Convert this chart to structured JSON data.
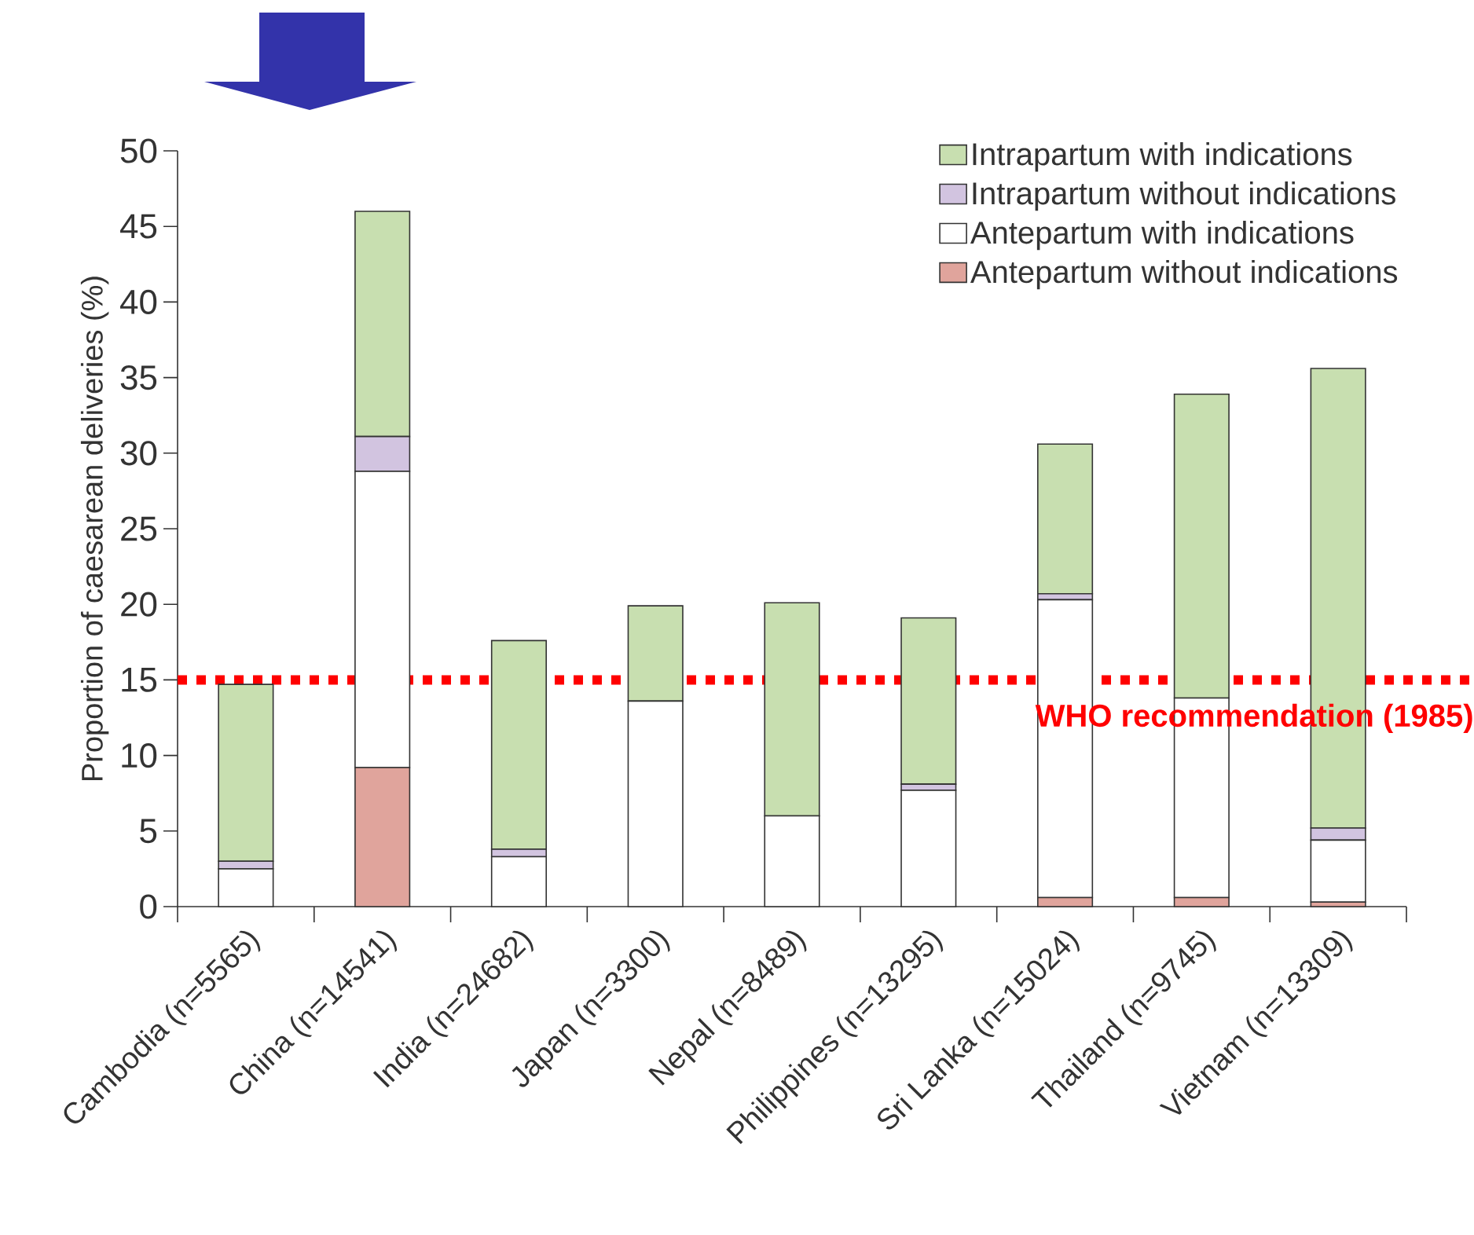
{
  "chart_data": {
    "type": "bar",
    "stacked": true,
    "ylabel": "Proportion of caesarean deliveries (%)",
    "categories": [
      "Cambodia (n=5565)",
      "China (n=14541)",
      "India (n=24682)",
      "Japan (n=3300)",
      "Nepal (n=8489)",
      "Philippines (n=13295)",
      "Sri Lanka (n=15024)",
      "Thailand (n=9745)",
      "Vietnam (n=13309)"
    ],
    "series": [
      {
        "name": "Antepartum without indications",
        "color": "#e0a49c",
        "values": [
          0,
          9.2,
          0,
          0,
          0,
          0,
          0.6,
          0.6,
          0.3
        ]
      },
      {
        "name": "Antepartum with indications",
        "color": "#ffffff",
        "values": [
          2.5,
          19.6,
          3.3,
          13.6,
          6.0,
          7.7,
          19.7,
          13.2,
          4.1
        ]
      },
      {
        "name": "Intrapartum without indications",
        "color": "#d2c4e0",
        "values": [
          0.5,
          2.3,
          0.5,
          0,
          0,
          0.4,
          0.4,
          0,
          0.8
        ]
      },
      {
        "name": "Intrapartum with indications",
        "color": "#c8dfb0",
        "values": [
          11.7,
          14.9,
          13.8,
          6.3,
          14.1,
          11.0,
          9.9,
          20.1,
          30.4
        ]
      }
    ],
    "ylim": [
      0,
      50
    ],
    "yticks": [
      0,
      5,
      10,
      15,
      20,
      25,
      30,
      35,
      40,
      45,
      50
    ],
    "legend": "top right",
    "ref_lines": [
      {
        "axis": "y",
        "value": 15,
        "label": "WHO recommendation (1985)",
        "color": "#ff0000",
        "line_style": "dotted"
      }
    ]
  }
}
